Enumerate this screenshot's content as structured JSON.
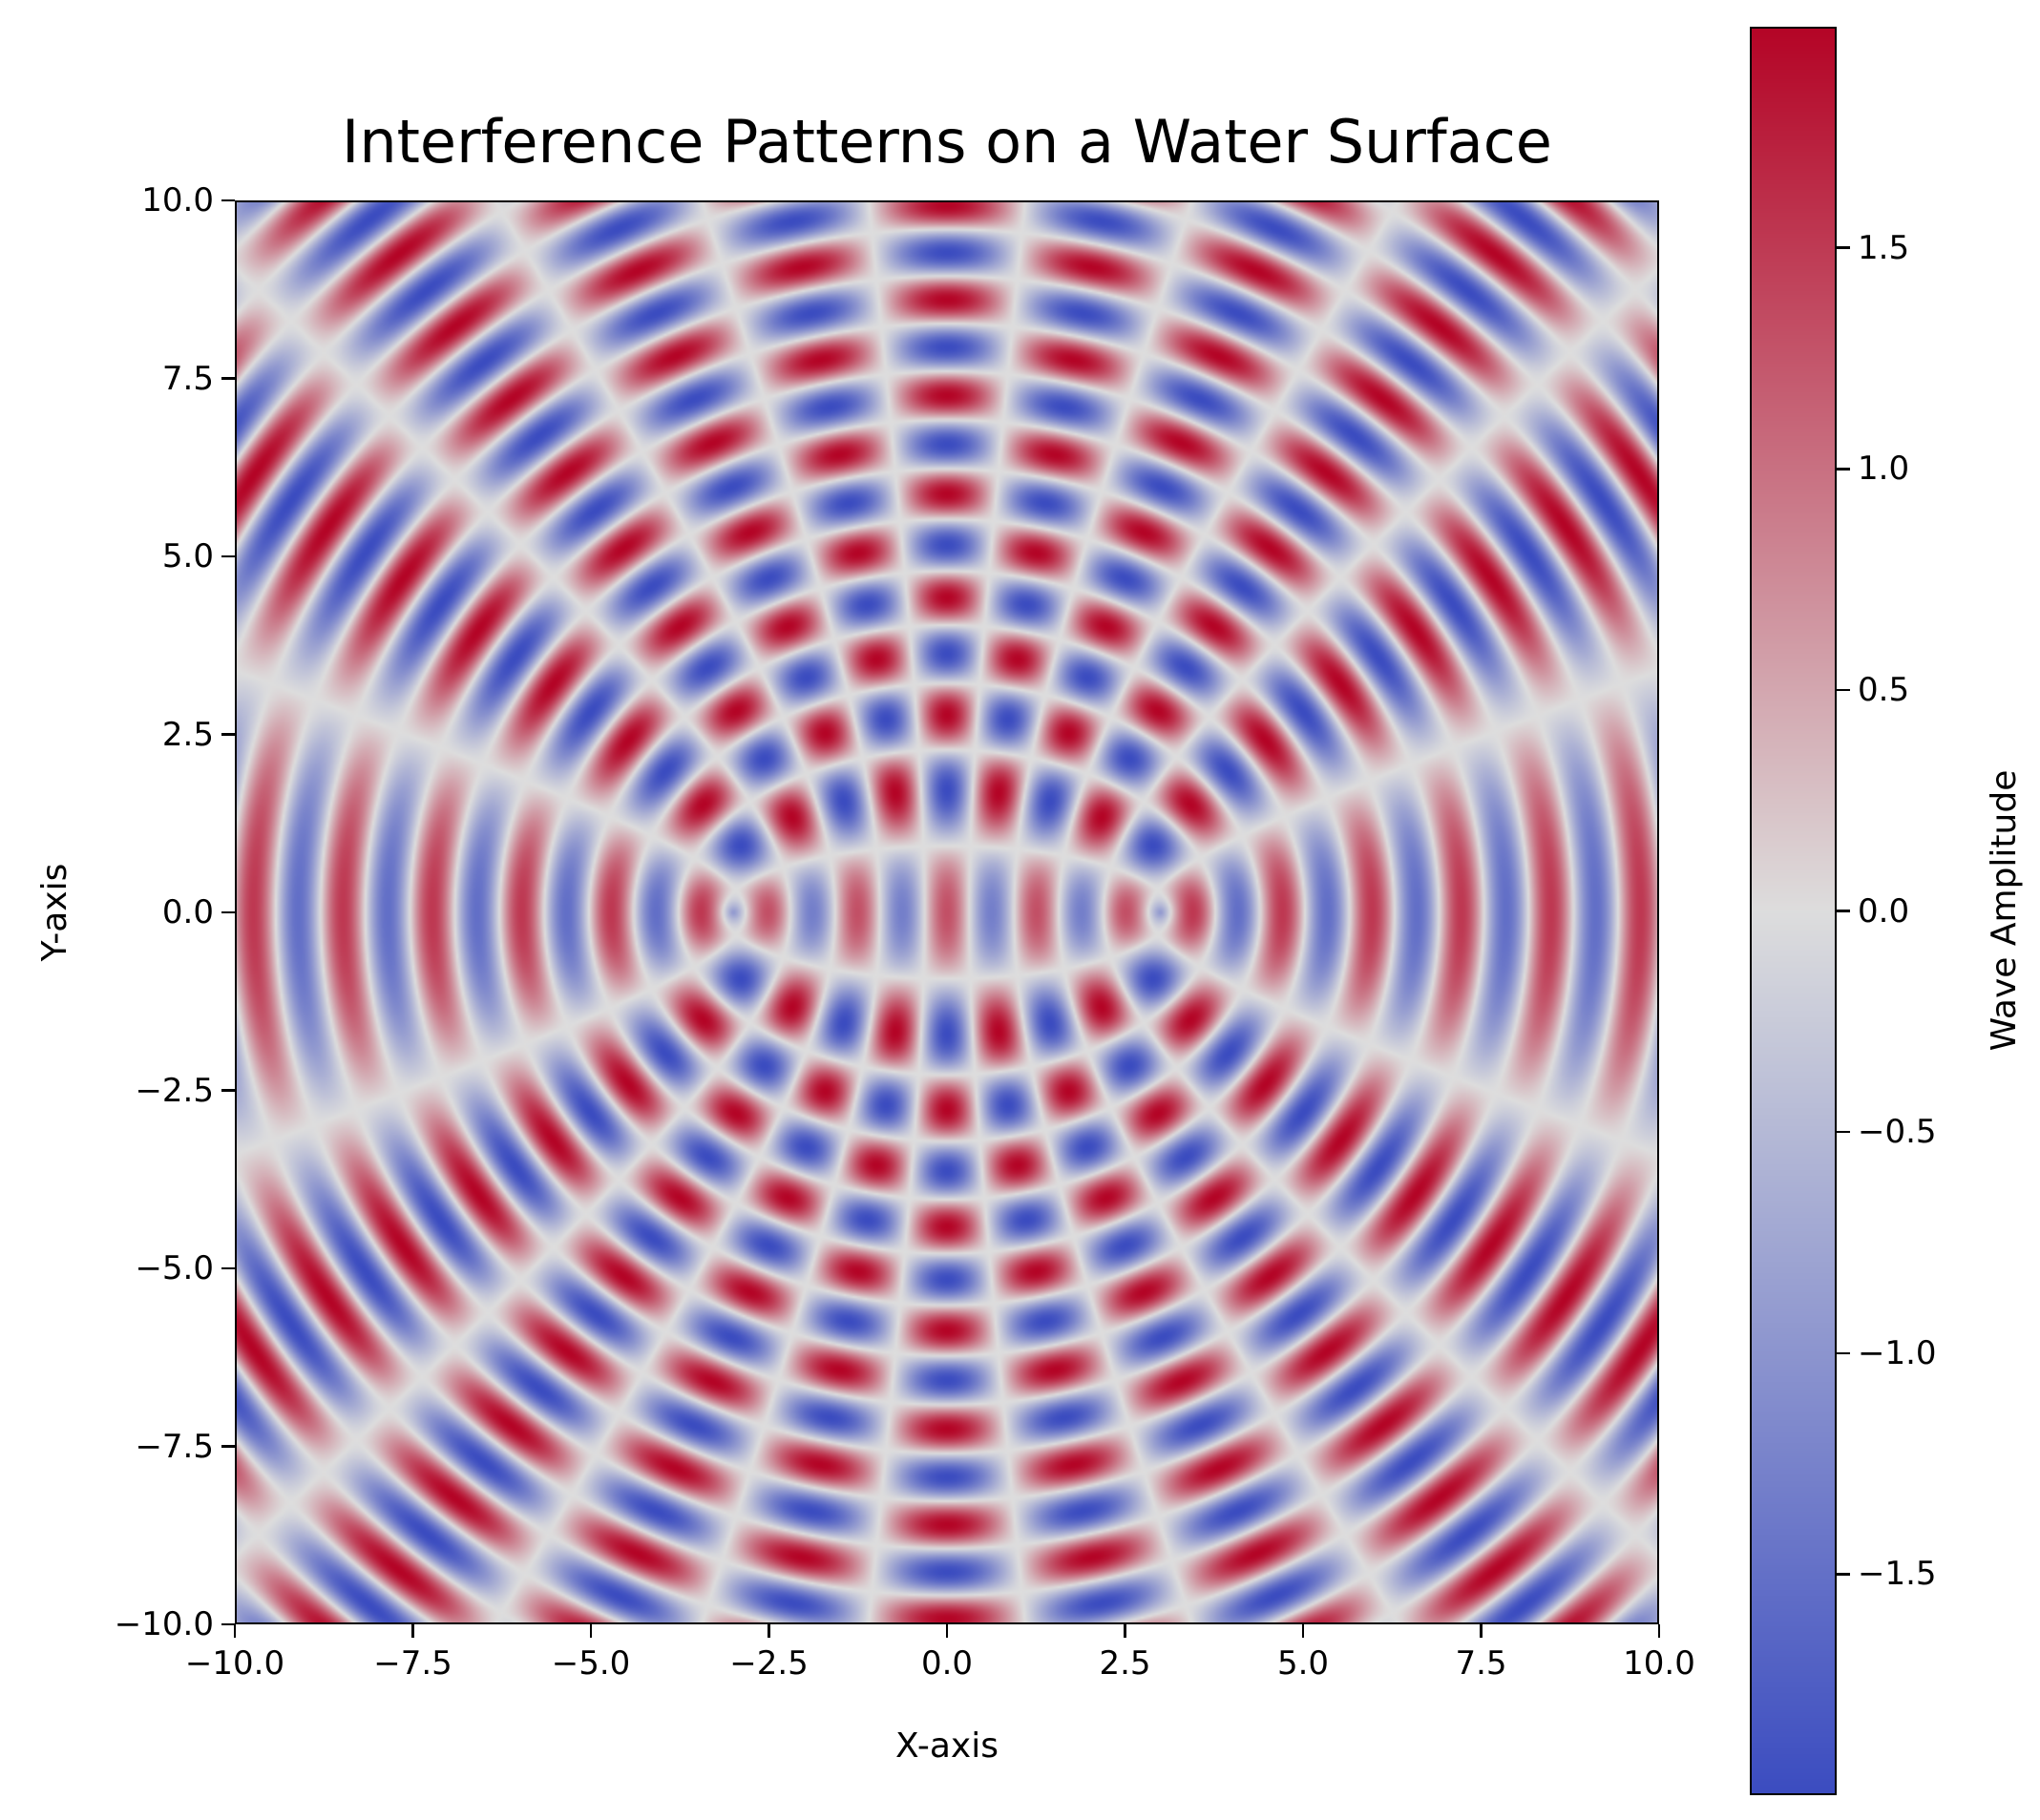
{
  "chart_data": {
    "type": "heatmap",
    "title": "Interference Patterns on a Water Surface",
    "xlabel": "X-axis",
    "ylabel": "Y-axis",
    "xlim": [
      -10.0,
      10.0
    ],
    "ylim": [
      -10.0,
      10.0
    ],
    "x_ticks": [
      "−10.0",
      "−7.5",
      "−5.0",
      "−2.5",
      "0.0",
      "2.5",
      "5.0",
      "7.5",
      "10.0"
    ],
    "y_ticks": [
      "−10.0",
      "−7.5",
      "−5.0",
      "−2.5",
      "0.0",
      "2.5",
      "5.0",
      "7.5",
      "10.0"
    ],
    "x_tick_values": [
      -10,
      -7.5,
      -5,
      -2.5,
      0,
      2.5,
      5,
      7.5,
      10
    ],
    "y_tick_values": [
      -10,
      -7.5,
      -5,
      -2.5,
      0,
      2.5,
      5,
      7.5,
      10
    ],
    "sources": [
      [
        -3,
        0
      ],
      [
        3,
        0
      ]
    ],
    "wave_number": 5,
    "colormap": "coolwarm",
    "colormap_stops": [
      "#3b4cc0",
      "#dddddd",
      "#b40426"
    ],
    "grid": false,
    "colorbar": {
      "label": "Wave Amplitude",
      "range": [
        -2.0,
        2.0
      ],
      "ticks": [
        "−1.5",
        "−1.0",
        "−0.5",
        "0.0",
        "0.5",
        "1.0",
        "1.5"
      ],
      "tick_values": [
        -1.5,
        -1.0,
        -0.5,
        0.0,
        0.5,
        1.0,
        1.5
      ]
    }
  }
}
